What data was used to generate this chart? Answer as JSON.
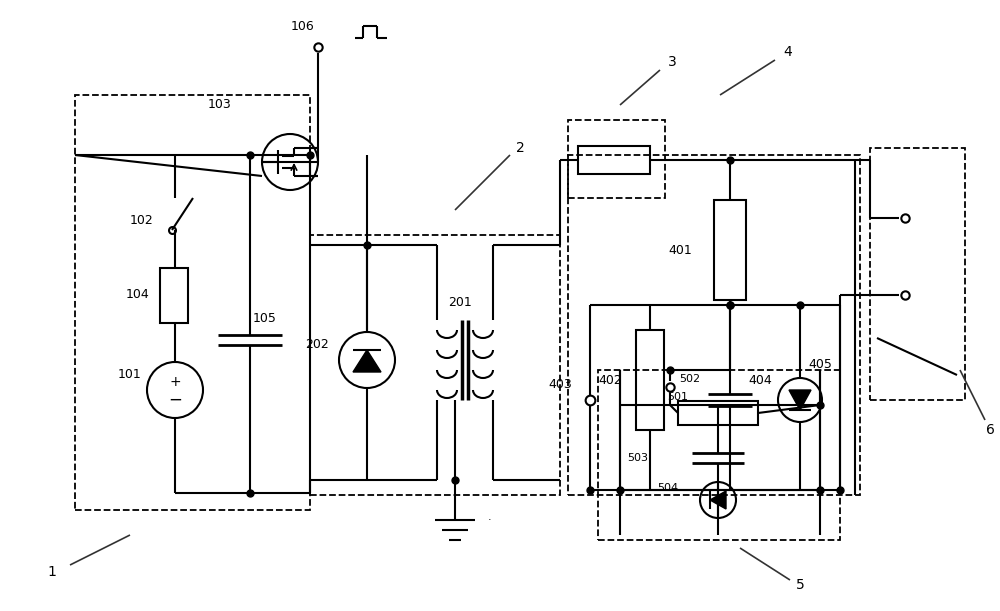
{
  "bg_color": "#ffffff",
  "line_color": "#000000",
  "figsize": [
    10.0,
    6.11
  ],
  "dpi": 100
}
